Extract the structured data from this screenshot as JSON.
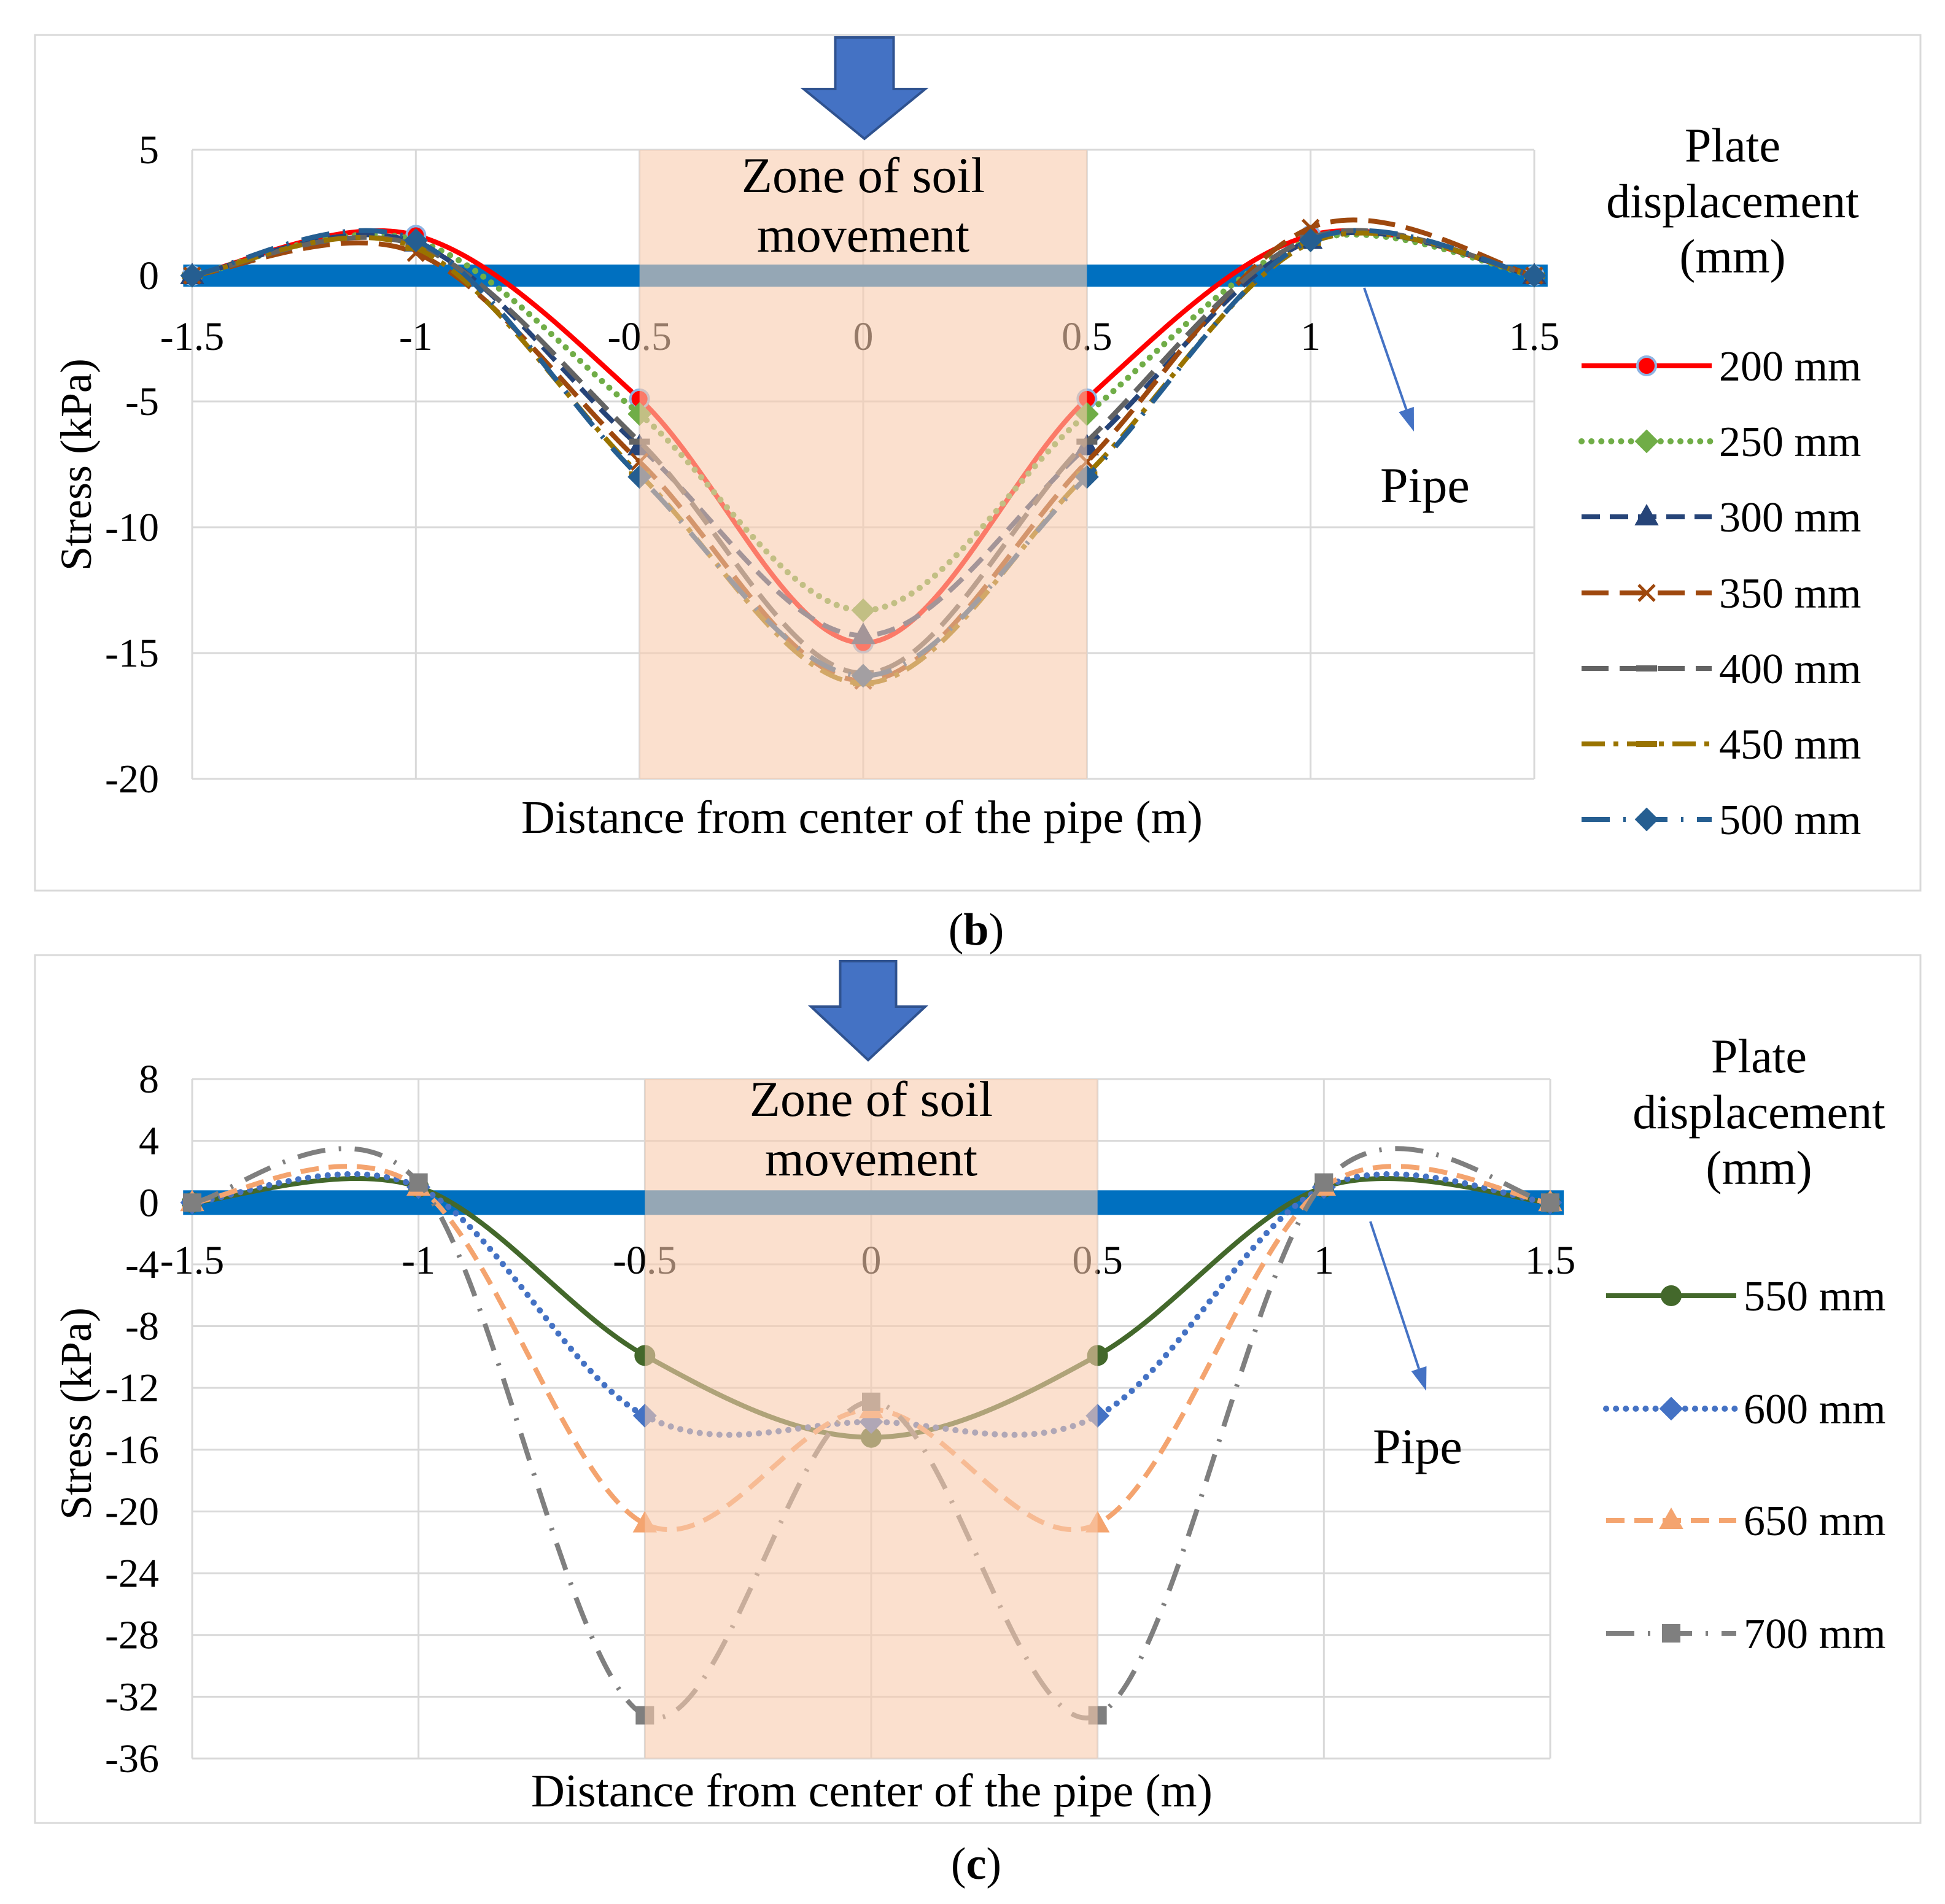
{
  "chart_data": [
    {
      "type": "line",
      "caption": {
        "open": "(",
        "label": "b",
        "close": ")"
      },
      "xlabel": "Distance from center of the pipe (m)",
      "ylabel": "Stress (kPa)",
      "x": [
        -1.5,
        -1,
        -0.5,
        0,
        0.5,
        1,
        1.5
      ],
      "xlim": [
        -1.5,
        1.5
      ],
      "x_ticks": [
        -1.5,
        -1,
        -0.5,
        0,
        0.5,
        1,
        1.5
      ],
      "x_tick_labels": [
        "-1.5",
        "-1",
        "-0.5",
        "0",
        "0.5",
        "1",
        "1.5"
      ],
      "ylim": [
        -20,
        5
      ],
      "y_ticks": [
        5,
        0,
        -5,
        -10,
        -15,
        -20
      ],
      "y_tick_labels": [
        "5",
        "0",
        "-5",
        "-10",
        "-15",
        "-20"
      ],
      "grid": true,
      "legend": {
        "title_lines": [
          "Plate",
          "displacement",
          "(mm)"
        ],
        "position": "right"
      },
      "zone": {
        "label_lines": [
          "Zone of soil",
          "movement"
        ],
        "x_range": [
          -0.5,
          0.5
        ],
        "color": "#f8cbad"
      },
      "pipe": {
        "label": "Pipe",
        "y": 0,
        "x_range": [
          -1.52,
          1.53
        ],
        "color": "#0070c0",
        "pointer_color": "#4472c4"
      },
      "load_arrow": {
        "icon": "down-arrow-icon",
        "color": "#4472c4",
        "edge_color": "#2f528f"
      },
      "series": [
        {
          "name": "200 mm",
          "values": [
            0,
            1.6,
            -4.9,
            -14.6,
            -4.9,
            1.6,
            0
          ],
          "color": "#ff0000",
          "line_style": "solid",
          "marker": "circle",
          "marker_edge": "#8eb4e3"
        },
        {
          "name": "250 mm",
          "values": [
            0,
            1.4,
            -5.5,
            -13.3,
            -5.5,
            1.4,
            0
          ],
          "color": "#70ad47",
          "line_style": "dotted",
          "marker": "diamond"
        },
        {
          "name": "300 mm",
          "values": [
            0,
            1.3,
            -6.8,
            -14.3,
            -6.8,
            1.4,
            0
          ],
          "color": "#264478",
          "line_style": "dashed",
          "marker": "triangle"
        },
        {
          "name": "350 mm",
          "values": [
            0,
            0.9,
            -7.4,
            -16.1,
            -7.4,
            1.9,
            0
          ],
          "color": "#9e480e",
          "line_style": "long-dash",
          "marker": "x"
        },
        {
          "name": "400 mm",
          "values": [
            0,
            1.2,
            -6.6,
            -15.8,
            -6.6,
            1.5,
            0
          ],
          "color": "#636363",
          "line_style": "long-dash",
          "marker": "dash"
        },
        {
          "name": "450 mm",
          "values": [
            0,
            1.1,
            -7.9,
            -16.2,
            -7.9,
            1.3,
            0
          ],
          "color": "#997300",
          "line_style": "dash-dot",
          "marker": "dash"
        },
        {
          "name": "500 mm",
          "values": [
            0,
            1.4,
            -8.0,
            -15.9,
            -8.0,
            1.4,
            0
          ],
          "color": "#255e91",
          "line_style": "long-dash-dot",
          "marker": "diamond"
        }
      ]
    },
    {
      "type": "line",
      "caption": {
        "open": "(",
        "label": "c",
        "close": ")"
      },
      "xlabel": "Distance from center of the pipe (m)",
      "ylabel": "Stress (kPa)",
      "x": [
        -1.5,
        -1,
        -0.5,
        0,
        0.5,
        1,
        1.5
      ],
      "xlim": [
        -1.5,
        1.5
      ],
      "x_ticks": [
        -1.5,
        -1,
        -0.5,
        0,
        0.5,
        1,
        1.5
      ],
      "x_tick_labels": [
        "-1.5",
        "-1",
        "-0.5",
        "0",
        "0.5",
        "1",
        "1.5"
      ],
      "ylim": [
        -36,
        8
      ],
      "y_ticks": [
        8,
        4,
        0,
        -4,
        -8,
        -12,
        -16,
        -20,
        -24,
        -28,
        -32,
        -36
      ],
      "y_tick_labels": [
        "8",
        "4",
        "0",
        "-4",
        "-8",
        "-12",
        "-16",
        "-20",
        "-24",
        "-28",
        "-32",
        "-36"
      ],
      "grid": true,
      "legend": {
        "title_lines": [
          "Plate",
          "displacement",
          "(mm)"
        ],
        "position": "right"
      },
      "zone": {
        "label_lines": [
          "Zone of soil",
          "movement"
        ],
        "x_range": [
          -0.5,
          0.5
        ],
        "color": "#f8cbad"
      },
      "pipe": {
        "label": "Pipe",
        "y": 0,
        "x_range": [
          -1.52,
          1.53
        ],
        "color": "#0070c0",
        "pointer_color": "#4472c4"
      },
      "load_arrow": {
        "icon": "down-arrow-icon",
        "color": "#4472c4",
        "edge_color": "#2f528f"
      },
      "series": [
        {
          "name": "550 mm",
          "values": [
            0,
            1.0,
            -9.9,
            -15.2,
            -9.9,
            1.0,
            0
          ],
          "color": "#43682b",
          "line_style": "solid",
          "marker": "circle"
        },
        {
          "name": "600 mm",
          "values": [
            0,
            1.0,
            -13.8,
            -14.2,
            -13.8,
            1.0,
            0
          ],
          "color": "#4472c4",
          "line_style": "dotted",
          "marker": "diamond"
        },
        {
          "name": "650 mm",
          "values": [
            0,
            1.0,
            -20.8,
            -13.4,
            -20.8,
            1.0,
            0
          ],
          "color": "#f4a46f",
          "line_style": "dashed",
          "marker": "triangle"
        },
        {
          "name": "700 mm",
          "values": [
            0,
            1.3,
            -33.2,
            -12.9,
            -33.2,
            1.3,
            0
          ],
          "color": "#7f7f7f",
          "line_style": "long-dash-dot",
          "marker": "square"
        }
      ]
    }
  ]
}
